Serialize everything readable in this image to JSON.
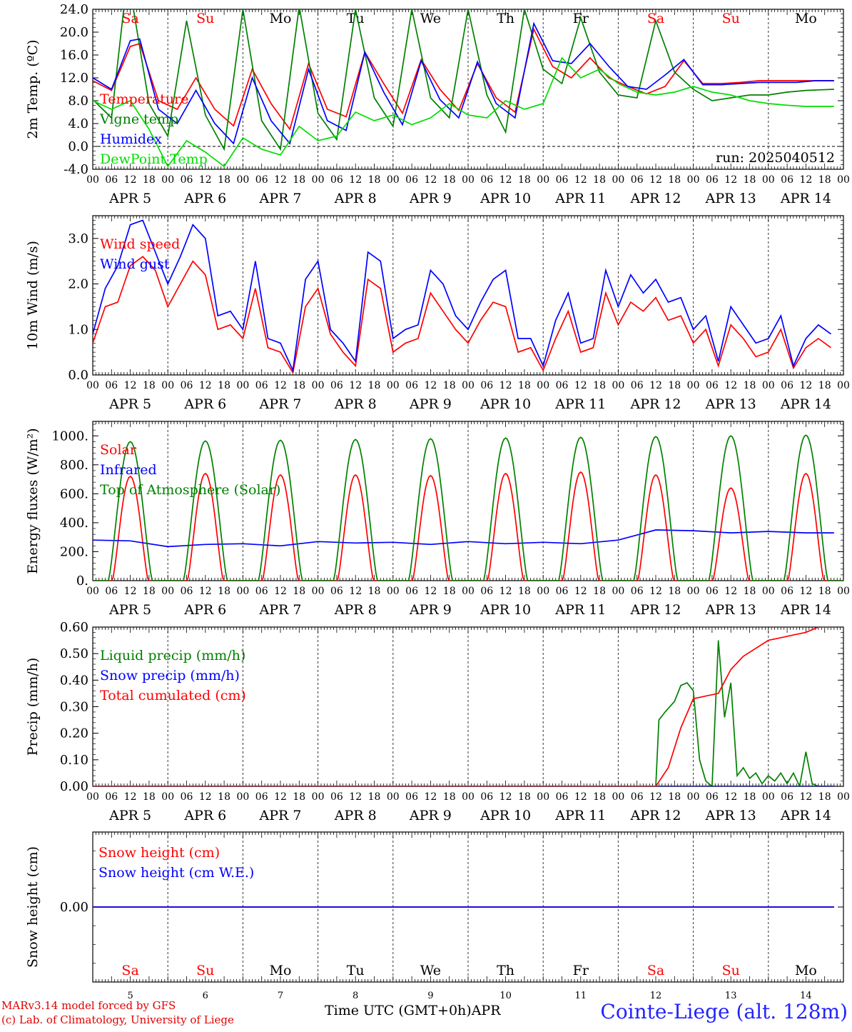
{
  "days": [
    {
      "date": "5",
      "month_label": "APR  5",
      "dow": "Sa",
      "weekend": true
    },
    {
      "date": "6",
      "month_label": "APR  6",
      "dow": "Su",
      "weekend": true
    },
    {
      "date": "7",
      "month_label": "APR  7",
      "dow": "Mo",
      "weekend": false
    },
    {
      "date": "8",
      "month_label": "APR  8",
      "dow": "Tu",
      "weekend": false
    },
    {
      "date": "9",
      "month_label": "APR  9",
      "dow": "We",
      "weekend": false
    },
    {
      "date": "10",
      "month_label": "APR 10",
      "dow": "Th",
      "weekend": false
    },
    {
      "date": "11",
      "month_label": "APR 11",
      "dow": "Fr",
      "weekend": false
    },
    {
      "date": "12",
      "month_label": "APR 12",
      "dow": "Sa",
      "weekend": true
    },
    {
      "date": "13",
      "month_label": "APR 13",
      "dow": "Su",
      "weekend": true
    },
    {
      "date": "14",
      "month_label": "APR 14",
      "dow": "Mo",
      "weekend": false
    }
  ],
  "hour_ticks": [
    "00",
    "06",
    "12",
    "18"
  ],
  "final_hour_tick": "00",
  "colors": {
    "red": "#ff0000",
    "green": "#008000",
    "blue": "#0000ff",
    "lightgreen": "#00dd00",
    "weekend": "#ff0000",
    "weekday": "#000000",
    "site": "#2323ff",
    "credit": "#e00000"
  },
  "footer": {
    "credit_line1": "MARv3.14 model forced by GFS",
    "credit_line2": "(c) Lab. of Climatology, University of Liege",
    "time_axis": "Time UTC (GMT+0h)",
    "month": "APR",
    "site": "Cointe-Liege (alt. 128m)"
  },
  "chart_data": [
    {
      "type": "line",
      "ylabel": "2m Temp. (ºC)",
      "ylim": [
        -4,
        24
      ],
      "yticks": [
        "-4.0",
        "0.0",
        "4.0",
        "8.0",
        "12.0",
        "16.0",
        "20.0",
        "24.0"
      ],
      "ytick_values": [
        -4,
        0,
        4,
        8,
        12,
        16,
        20,
        24
      ],
      "zero_line": true,
      "annotation": "run: 2025040512",
      "x_unit": "hours from APR 5 00 UTC",
      "show_dow_labels": true,
      "series": [
        {
          "name": "Temperature",
          "color": "red",
          "x": [
            0,
            6,
            12,
            15,
            21,
            27,
            33,
            39,
            45,
            51,
            57,
            63,
            69,
            75,
            81,
            87,
            93,
            99,
            105,
            111,
            117,
            123,
            129,
            135,
            141,
            147,
            153,
            159,
            165,
            171,
            177,
            183,
            189,
            195,
            201,
            207,
            213,
            219,
            225,
            231,
            237
          ],
          "y": [
            11.5,
            9.8,
            17.5,
            18.0,
            8.0,
            6.5,
            12.0,
            6.5,
            3.6,
            13.5,
            7.5,
            3.0,
            14.5,
            6.5,
            5.2,
            16.5,
            11.0,
            5.8,
            15.2,
            10.0,
            6.3,
            14.5,
            8.5,
            6.0,
            20.5,
            14.0,
            12.0,
            15.5,
            12.0,
            10.5,
            9.2,
            10.5,
            15.0,
            11.0,
            11.0,
            11.2,
            11.5,
            11.5,
            11.5,
            11.5,
            11.5
          ]
        },
        {
          "name": "Vigne temp",
          "color": "green",
          "x": [
            0,
            6,
            10,
            13,
            18,
            24,
            30,
            36,
            42,
            48,
            54,
            60,
            66,
            72,
            78,
            84,
            90,
            96,
            102,
            108,
            114,
            120,
            126,
            132,
            138,
            144,
            150,
            156,
            162,
            168,
            174,
            180,
            186,
            192,
            198,
            204,
            210,
            216,
            222,
            228,
            237
          ],
          "y": [
            8.2,
            5.0,
            24.5,
            24.0,
            7.5,
            1.8,
            22.0,
            5.5,
            -0.5,
            24.0,
            4.5,
            -0.5,
            24.5,
            5.8,
            1.2,
            24.0,
            8.5,
            3.5,
            24.0,
            8.5,
            5.0,
            24.0,
            9.0,
            2.5,
            24.0,
            13.5,
            11.0,
            22.5,
            13.0,
            9.0,
            8.5,
            22.0,
            13.0,
            10.0,
            8.0,
            8.5,
            9.0,
            9.0,
            9.5,
            9.8,
            10.0
          ]
        },
        {
          "name": "Humidex",
          "color": "blue",
          "x": [
            0,
            6,
            12,
            15,
            21,
            27,
            33,
            39,
            45,
            51,
            57,
            63,
            69,
            75,
            81,
            87,
            93,
            99,
            105,
            111,
            117,
            123,
            129,
            135,
            141,
            147,
            153,
            159,
            165,
            171,
            177,
            183,
            189,
            195,
            201,
            207,
            213,
            219,
            225,
            231,
            237
          ],
          "y": [
            12.0,
            10.0,
            18.5,
            18.8,
            6.5,
            4.0,
            9.8,
            4.0,
            0.5,
            12.0,
            4.5,
            0.5,
            13.5,
            4.5,
            2.8,
            16.5,
            9.5,
            3.8,
            15.0,
            8.2,
            5.0,
            14.8,
            7.5,
            5.0,
            21.5,
            15.0,
            14.5,
            18.0,
            14.0,
            10.5,
            10.0,
            12.5,
            15.2,
            10.8,
            10.8,
            11.0,
            11.2,
            11.2,
            11.2,
            11.5,
            11.5
          ]
        },
        {
          "name": "DewPoint Temp",
          "color": "lightgreen",
          "x": [
            0,
            6,
            12,
            18,
            24,
            30,
            36,
            42,
            48,
            54,
            60,
            66,
            72,
            78,
            84,
            90,
            96,
            102,
            108,
            114,
            120,
            126,
            132,
            138,
            144,
            150,
            156,
            162,
            168,
            174,
            180,
            186,
            192,
            198,
            204,
            210,
            216,
            222,
            228,
            233,
            237
          ],
          "y": [
            8.0,
            6.5,
            8.0,
            3.0,
            -3.5,
            1.0,
            -1.0,
            -3.5,
            1.5,
            -0.5,
            -1.5,
            3.5,
            1.0,
            1.8,
            6.0,
            4.5,
            5.5,
            3.8,
            5.0,
            7.5,
            5.5,
            5.0,
            8.0,
            6.5,
            7.5,
            15.5,
            12.0,
            13.5,
            11.0,
            9.5,
            9.0,
            9.5,
            10.5,
            9.5,
            9.0,
            8.0,
            7.5,
            7.2,
            7.0,
            7.0,
            7.0
          ]
        }
      ]
    },
    {
      "type": "line",
      "ylabel": "10m Wind (m/s)",
      "ylim": [
        0,
        3.5
      ],
      "yticks": [
        "0.0",
        "1.0",
        "2.0",
        "3.0"
      ],
      "ytick_values": [
        0,
        1,
        2,
        3
      ],
      "x_unit": "hours from APR 5 00 UTC",
      "series": [
        {
          "name": "Wind speed",
          "color": "red",
          "x": [
            0,
            4,
            8,
            12,
            16,
            20,
            24,
            28,
            32,
            36,
            40,
            44,
            48,
            52,
            56,
            60,
            64,
            68,
            72,
            76,
            80,
            84,
            88,
            92,
            96,
            100,
            104,
            108,
            112,
            116,
            120,
            124,
            128,
            132,
            136,
            140,
            144,
            148,
            152,
            156,
            160,
            164,
            168,
            172,
            176,
            180,
            184,
            188,
            192,
            196,
            200,
            204,
            208,
            212,
            216,
            220,
            224,
            228,
            232,
            236
          ],
          "y": [
            0.7,
            1.5,
            1.6,
            2.4,
            2.6,
            2.3,
            1.5,
            2.0,
            2.5,
            2.2,
            1.0,
            1.1,
            0.8,
            1.9,
            0.6,
            0.5,
            0.05,
            1.5,
            1.9,
            0.9,
            0.5,
            0.2,
            2.1,
            1.9,
            0.5,
            0.7,
            0.8,
            1.8,
            1.4,
            1.0,
            0.7,
            1.2,
            1.6,
            1.5,
            0.5,
            0.6,
            0.1,
            0.8,
            1.4,
            0.5,
            0.6,
            1.8,
            1.1,
            1.6,
            1.4,
            1.7,
            1.2,
            1.3,
            0.7,
            1.0,
            0.2,
            1.1,
            0.8,
            0.4,
            0.5,
            1.0,
            0.15,
            0.6,
            0.8,
            0.6
          ]
        },
        {
          "name": "Wind gust",
          "color": "blue",
          "x": [
            0,
            4,
            8,
            12,
            16,
            20,
            24,
            28,
            32,
            36,
            40,
            44,
            48,
            52,
            56,
            60,
            64,
            68,
            72,
            76,
            80,
            84,
            88,
            92,
            96,
            100,
            104,
            108,
            112,
            116,
            120,
            124,
            128,
            132,
            136,
            140,
            144,
            148,
            152,
            156,
            160,
            164,
            168,
            172,
            176,
            180,
            184,
            188,
            192,
            196,
            200,
            204,
            208,
            212,
            216,
            220,
            224,
            228,
            232,
            236
          ],
          "y": [
            0.9,
            1.9,
            2.4,
            3.3,
            3.4,
            2.7,
            2.0,
            2.6,
            3.3,
            3.0,
            1.3,
            1.4,
            1.0,
            2.5,
            0.8,
            0.7,
            0.1,
            2.1,
            2.5,
            1.0,
            0.7,
            0.3,
            2.7,
            2.5,
            0.8,
            1.0,
            1.1,
            2.3,
            2.0,
            1.3,
            1.0,
            1.6,
            2.1,
            2.3,
            0.8,
            0.8,
            0.2,
            1.2,
            1.8,
            0.7,
            0.8,
            2.3,
            1.5,
            2.2,
            1.8,
            2.1,
            1.6,
            1.7,
            1.0,
            1.3,
            0.3,
            1.5,
            1.1,
            0.7,
            0.8,
            1.3,
            0.2,
            0.8,
            1.1,
            0.9
          ]
        }
      ]
    },
    {
      "type": "line",
      "ylabel": "Energy fluxes (W/m²)",
      "ylim": [
        0,
        1100
      ],
      "yticks": [
        "0.",
        "200.",
        "400.",
        "600.",
        "800.",
        "1000."
      ],
      "ytick_values": [
        0,
        200,
        400,
        600,
        800,
        1000
      ],
      "x_unit": "hours from APR 5 00 UTC",
      "diurnal": {
        "solar_peaks": [
          720,
          740,
          730,
          730,
          725,
          740,
          750,
          730,
          640,
          740
        ],
        "toa_peaks": [
          960,
          965,
          970,
          975,
          980,
          985,
          990,
          995,
          1000,
          1005
        ],
        "sunrise_hour": 5,
        "sunset_hour": 19
      },
      "series": [
        {
          "name": "Solar",
          "color": "red"
        },
        {
          "name": "Infrared",
          "color": "blue",
          "x": [
            0,
            12,
            24,
            36,
            48,
            60,
            72,
            84,
            96,
            108,
            120,
            132,
            144,
            156,
            168,
            180,
            192,
            204,
            216,
            228,
            237
          ],
          "y": [
            280,
            275,
            235,
            250,
            255,
            240,
            270,
            260,
            265,
            250,
            270,
            255,
            265,
            255,
            280,
            350,
            345,
            330,
            340,
            330,
            330
          ]
        },
        {
          "name": "Top of Atmosphere (Solar)",
          "color": "green"
        }
      ]
    },
    {
      "type": "line",
      "ylabel": "Precip (mm/h)",
      "ylim": [
        0,
        0.6
      ],
      "yticks": [
        "0.00",
        "0.10",
        "0.20",
        "0.30",
        "0.40",
        "0.50",
        "0.60"
      ],
      "ytick_values": [
        0,
        0.1,
        0.2,
        0.3,
        0.4,
        0.5,
        0.6
      ],
      "x_unit": "hours from APR 5 00 UTC",
      "series": [
        {
          "name": "Liquid precip (mm/h)",
          "color": "green",
          "x": [
            0,
            180,
            181,
            183,
            186,
            188,
            190,
            192,
            194,
            196,
            198,
            200,
            202,
            204,
            206,
            208,
            210,
            212,
            214,
            216,
            218,
            220,
            222,
            224,
            226,
            228,
            230,
            232,
            237
          ],
          "y": [
            0,
            0,
            0.25,
            0.28,
            0.32,
            0.38,
            0.39,
            0.36,
            0.1,
            0.02,
            0,
            0.55,
            0.26,
            0.39,
            0.04,
            0.07,
            0.03,
            0.05,
            0.01,
            0.04,
            0.02,
            0.05,
            0.01,
            0.05,
            0,
            0.13,
            0.01,
            0,
            0
          ]
        },
        {
          "name": "Snow precip (mm/h)",
          "color": "blue",
          "x": [
            0,
            237
          ],
          "y": [
            0,
            0
          ]
        },
        {
          "name": "Total cumulated (cm)",
          "color": "red",
          "x": [
            0,
            180,
            184,
            188,
            192,
            196,
            200,
            204,
            208,
            212,
            216,
            220,
            224,
            228,
            232,
            237
          ],
          "y": [
            0,
            0,
            0.07,
            0.22,
            0.33,
            0.34,
            0.35,
            0.44,
            0.49,
            0.52,
            0.55,
            0.56,
            0.57,
            0.58,
            0.6,
            0.6
          ]
        }
      ]
    },
    {
      "type": "line",
      "ylabel": "Snow height (cm)",
      "ylim": [
        -1,
        1
      ],
      "yticks": [
        "0.00"
      ],
      "ytick_values": [
        0
      ],
      "x_unit": "hours from APR 5 00 UTC",
      "show_dow_bottom": true,
      "series": [
        {
          "name": "Snow height (cm)",
          "color": "red",
          "x": [
            0,
            237
          ],
          "y": [
            0,
            0
          ]
        },
        {
          "name": "Snow height (cm W.E.)",
          "color": "blue",
          "x": [
            0,
            237
          ],
          "y": [
            0,
            0
          ]
        }
      ]
    }
  ]
}
